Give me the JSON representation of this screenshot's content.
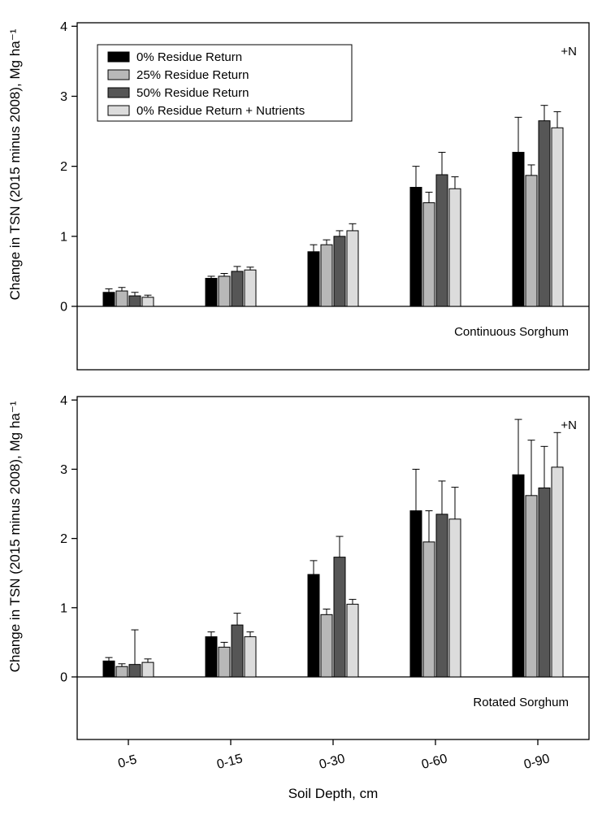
{
  "chart_data": {
    "type": "bar",
    "title": "",
    "xlabel": "Soil Depth, cm",
    "ylabel": "Change in TSN (2015 minus 2008), Mg ha⁻¹",
    "categories": [
      "0-5",
      "0-15",
      "0-30",
      "0-60",
      "0-90"
    ],
    "y_ticks": [
      0,
      1,
      2,
      3,
      4
    ],
    "ylim": [
      -0.9,
      4.05
    ],
    "grid": false,
    "legend": {
      "position": "top-left",
      "entries": [
        "0% Residue Return",
        "25% Residue Return",
        "50% Residue Return",
        "0% Residue Return + Nutrients"
      ]
    },
    "series_colors": [
      "#000000",
      "#b8b8b8",
      "#565656",
      "#dcdcdc"
    ],
    "error_bar_color": "#000000",
    "panels": [
      {
        "label": "Continuous Sorghum",
        "annotation": "+N",
        "series": [
          {
            "name": "0% Residue Return",
            "values": [
              0.2,
              0.4,
              0.78,
              1.7,
              2.2
            ],
            "errors": [
              0.05,
              0.03,
              0.1,
              0.3,
              0.5
            ]
          },
          {
            "name": "25% Residue Return",
            "values": [
              0.22,
              0.43,
              0.88,
              1.48,
              1.87
            ],
            "errors": [
              0.05,
              0.04,
              0.07,
              0.15,
              0.15
            ]
          },
          {
            "name": "50% Residue Return",
            "values": [
              0.15,
              0.5,
              1.0,
              1.88,
              2.65
            ],
            "errors": [
              0.05,
              0.07,
              0.08,
              0.32,
              0.22
            ]
          },
          {
            "name": "0% Residue Return + Nutrients",
            "values": [
              0.13,
              0.52,
              1.08,
              1.68,
              2.55
            ],
            "errors": [
              0.03,
              0.04,
              0.1,
              0.17,
              0.23
            ]
          }
        ]
      },
      {
        "label": "Rotated Sorghum",
        "annotation": "+N",
        "series": [
          {
            "name": "0% Residue Return",
            "values": [
              0.23,
              0.58,
              1.48,
              2.4,
              2.92
            ],
            "errors": [
              0.05,
              0.07,
              0.2,
              0.6,
              0.8
            ]
          },
          {
            "name": "25% Residue Return",
            "values": [
              0.15,
              0.43,
              0.9,
              1.95,
              2.62
            ],
            "errors": [
              0.04,
              0.07,
              0.08,
              0.45,
              0.8
            ]
          },
          {
            "name": "50% Residue Return",
            "values": [
              0.18,
              0.75,
              1.73,
              2.35,
              2.73
            ],
            "errors": [
              0.5,
              0.17,
              0.3,
              0.48,
              0.6
            ]
          },
          {
            "name": "0% Residue Return + Nutrients",
            "values": [
              0.21,
              0.58,
              1.05,
              2.28,
              3.03
            ],
            "errors": [
              0.05,
              0.07,
              0.07,
              0.46,
              0.5
            ]
          }
        ]
      }
    ]
  }
}
